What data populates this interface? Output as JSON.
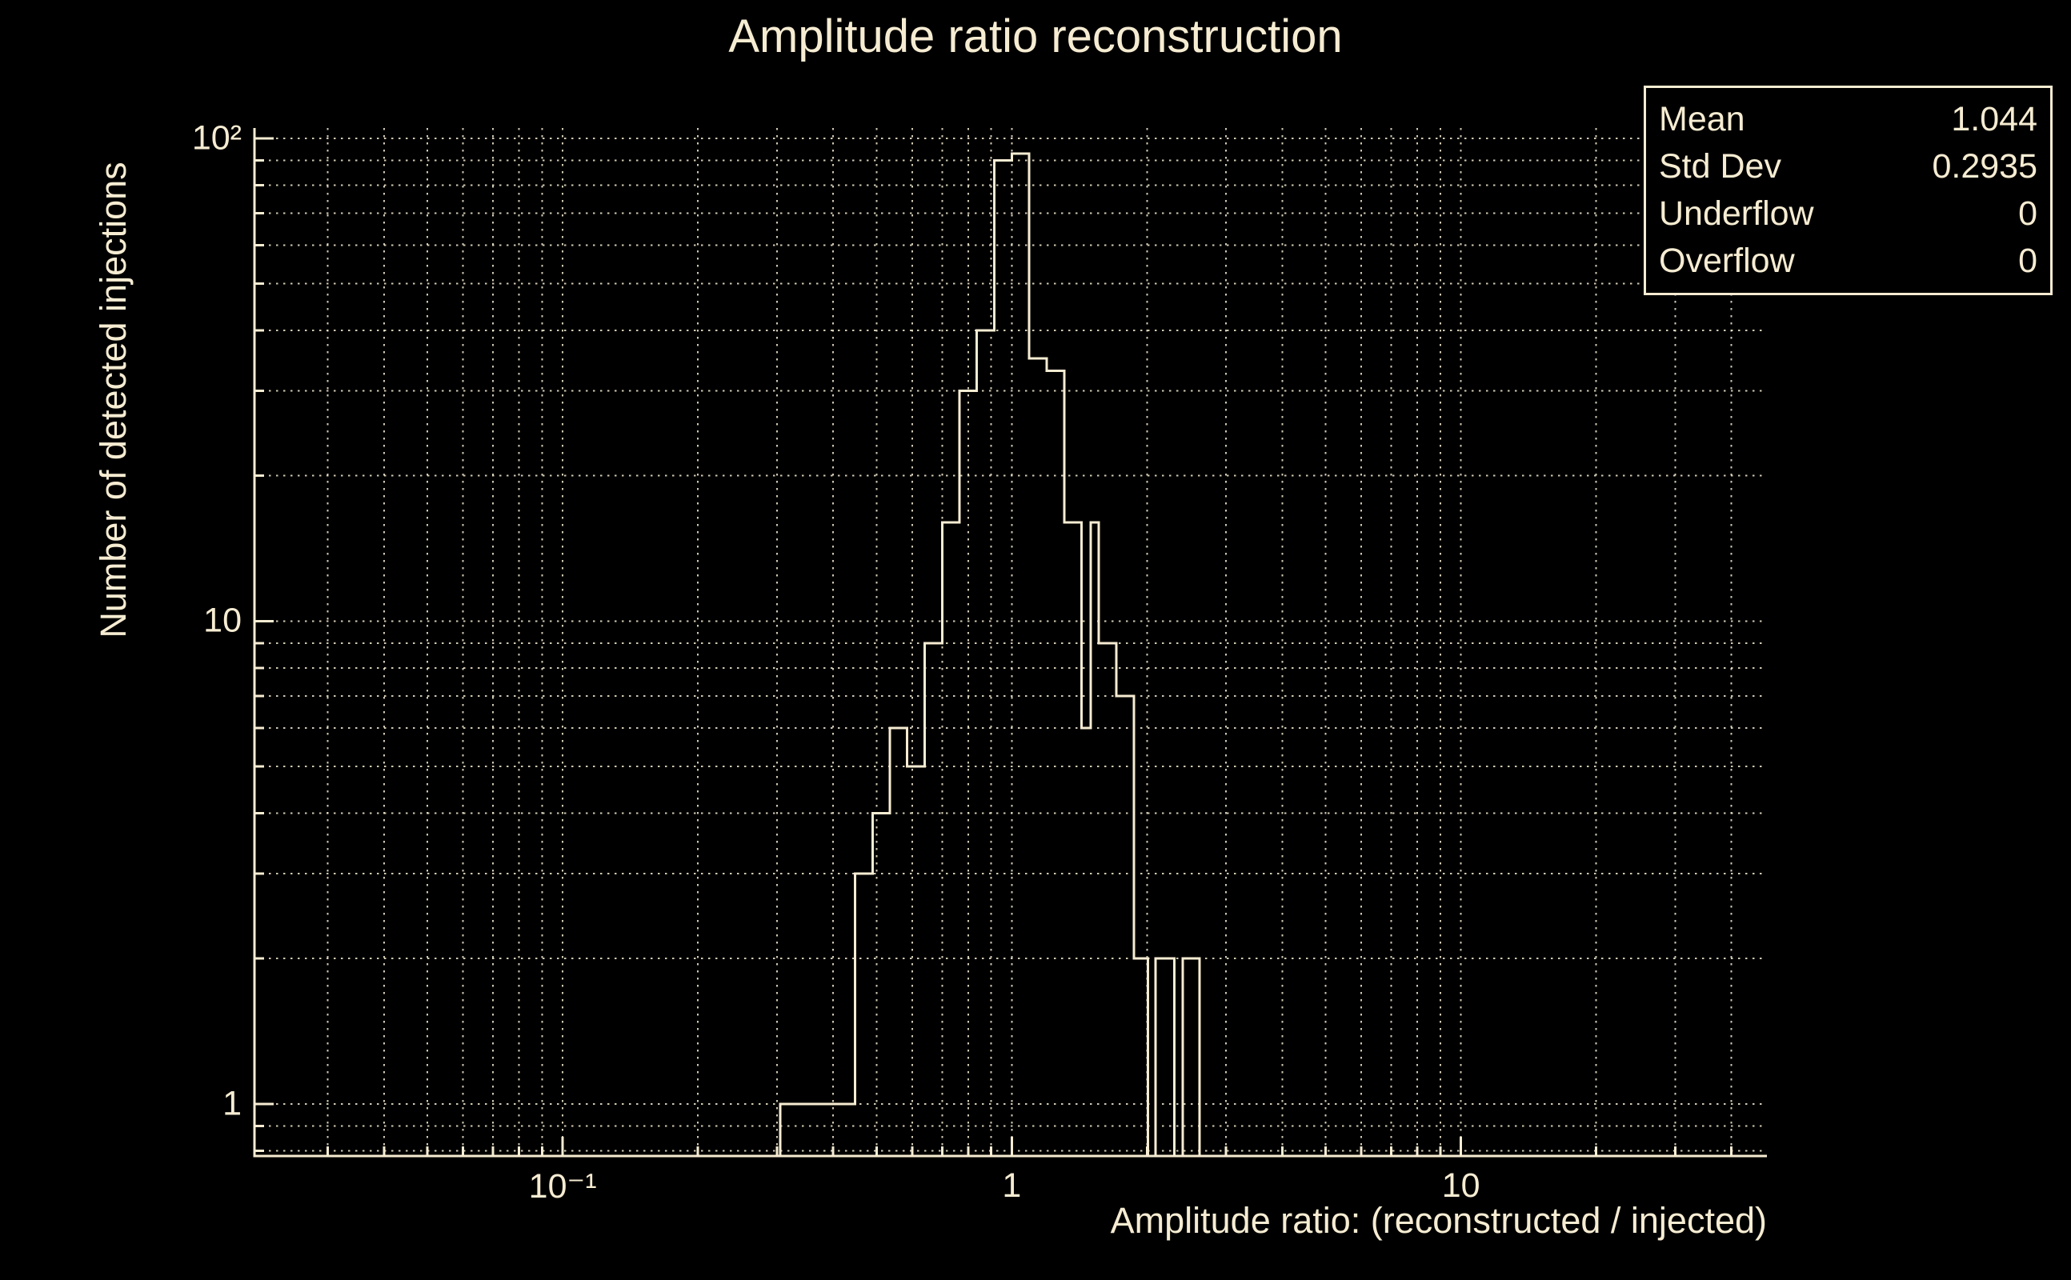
{
  "colors": {
    "background": "#000000",
    "foreground": "#f6ecd2",
    "grid": "#f6ecd2",
    "histogram": "#f6ecd2"
  },
  "stats_box": {
    "rows": [
      {
        "label": "Mean",
        "value": "1.044"
      },
      {
        "label": "Std Dev",
        "value": "0.2935"
      },
      {
        "label": "Underflow",
        "value": "0"
      },
      {
        "label": "Overflow",
        "value": "0"
      }
    ]
  },
  "chart_data": {
    "type": "bar",
    "subtype": "step-histogram",
    "title": "Amplitude ratio reconstruction",
    "xlabel": "Amplitude ratio: (reconstructed / injected)",
    "ylabel": "Number of detected injections",
    "x_scale": "log",
    "y_scale": "log",
    "xlim": [
      0.0206,
      48
    ],
    "ylim": [
      0.78,
      105
    ],
    "grid": true,
    "legend": false,
    "x_ticks": [
      {
        "v": 0.1,
        "label": "10⁻¹"
      },
      {
        "v": 1,
        "label": "1"
      },
      {
        "v": 10,
        "label": "10"
      }
    ],
    "y_ticks": [
      {
        "v": 1,
        "label": "1"
      },
      {
        "v": 10,
        "label": "10"
      },
      {
        "v": 100,
        "label": "10²"
      }
    ],
    "steps": [
      {
        "x": 0.305,
        "c": 1
      },
      {
        "x": 0.448,
        "c": 3
      },
      {
        "x": 0.49,
        "c": 4
      },
      {
        "x": 0.535,
        "c": 6
      },
      {
        "x": 0.585,
        "c": 5
      },
      {
        "x": 0.64,
        "c": 9
      },
      {
        "x": 0.7,
        "c": 16
      },
      {
        "x": 0.765,
        "c": 30
      },
      {
        "x": 0.836,
        "c": 40
      },
      {
        "x": 0.915,
        "c": 90
      },
      {
        "x": 1.0,
        "c": 93
      },
      {
        "x": 1.093,
        "c": 35
      },
      {
        "x": 1.196,
        "c": 33
      },
      {
        "x": 1.308,
        "c": 16
      },
      {
        "x": 1.429,
        "c": 6
      },
      {
        "x": 1.5,
        "c": 16
      },
      {
        "x": 1.563,
        "c": 9
      },
      {
        "x": 1.71,
        "c": 7
      },
      {
        "x": 1.869,
        "c": 2
      },
      {
        "x": 2.01,
        "c": 0
      },
      {
        "x": 2.09,
        "c": 2
      },
      {
        "x": 2.3,
        "c": 0
      },
      {
        "x": 2.4,
        "c": 2
      }
    ],
    "end_x": 2.62,
    "stats": {
      "mean": 1.044,
      "std_dev": 0.2935,
      "underflow": 0,
      "overflow": 0
    }
  }
}
